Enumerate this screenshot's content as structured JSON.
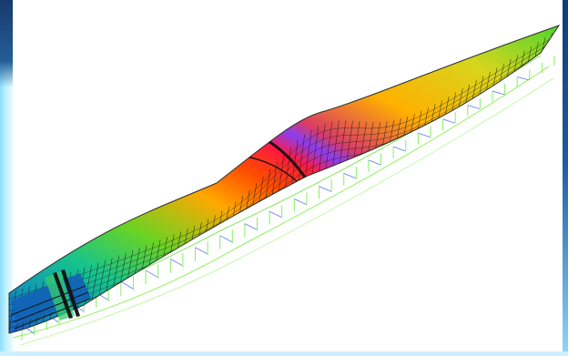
{
  "viewport": {
    "contour_colors": [
      "#1b5cc8",
      "#00b9b4",
      "#35d33b",
      "#ced31b",
      "#ffb000",
      "#ff4c00",
      "#ff0c52",
      "#8a3df2"
    ],
    "mesh_color": "#111111",
    "truss_color": "#7df35b",
    "brace_color": "#6d6dff",
    "frame_color": "#bdf1ff"
  }
}
